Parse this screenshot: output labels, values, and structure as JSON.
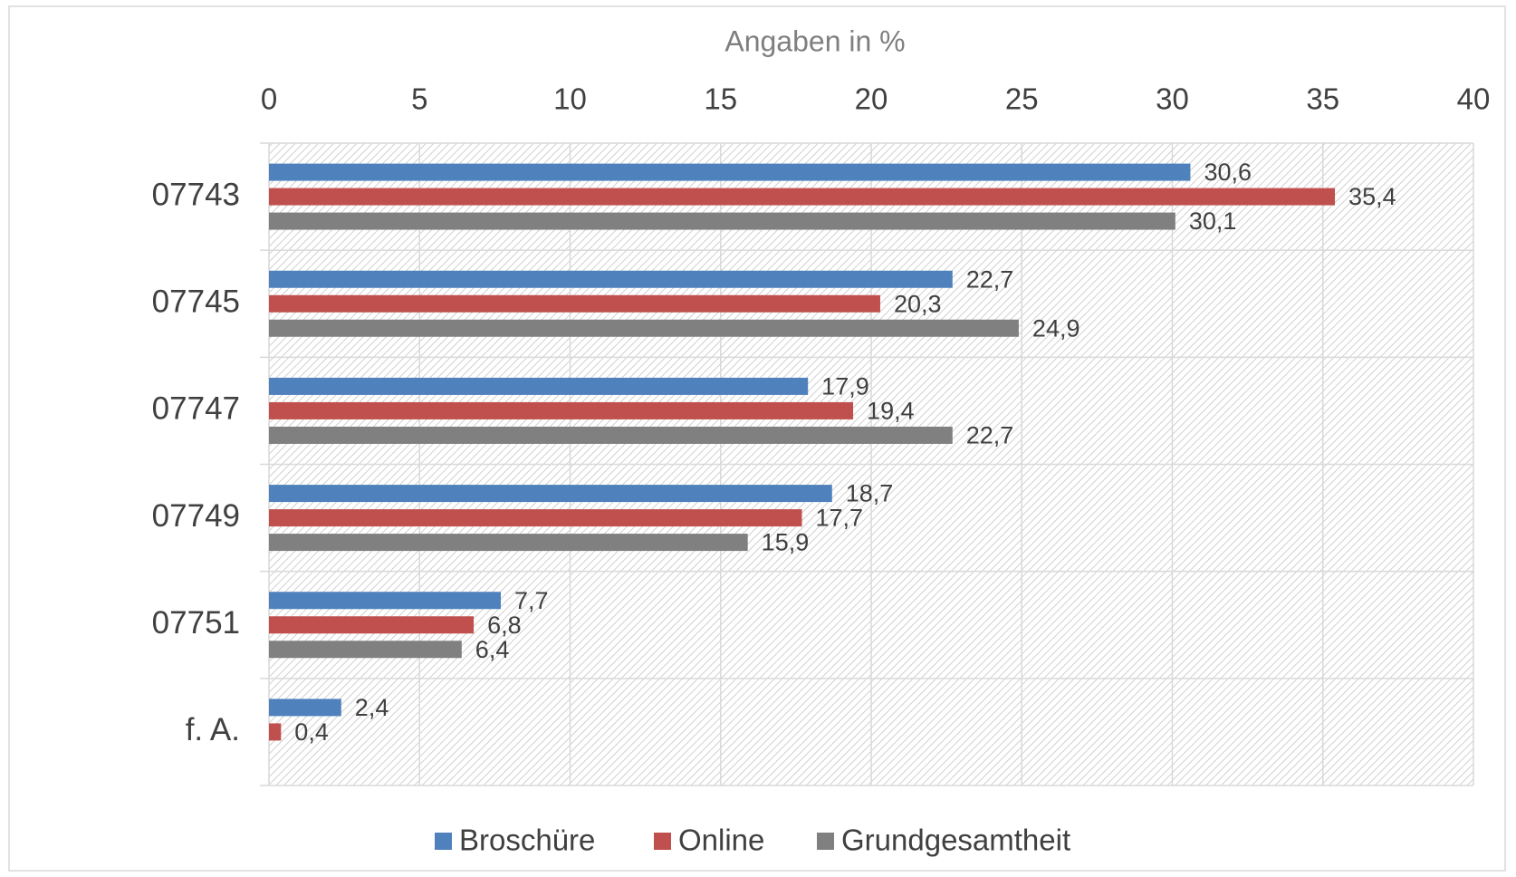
{
  "chart_data": {
    "type": "bar",
    "orientation": "horizontal",
    "xlabel": "Angaben in %",
    "categories": [
      "07743",
      "07745",
      "07747",
      "07749",
      "07751",
      "f. A."
    ],
    "series": [
      {
        "name": "Broschüre",
        "color": "#4f81bd",
        "values": [
          30.6,
          22.7,
          17.9,
          18.7,
          7.7,
          2.4
        ],
        "value_labels": [
          "30,6",
          "22,7",
          "17,9",
          "18,7",
          "7,7",
          "2,4"
        ]
      },
      {
        "name": "Online",
        "color": "#c0504d",
        "values": [
          35.4,
          20.3,
          19.4,
          17.7,
          6.8,
          0.4
        ],
        "value_labels": [
          "35,4",
          "20,3",
          "19,4",
          "17,7",
          "6,8",
          "0,4"
        ]
      },
      {
        "name": "Grundgesamtheit",
        "color": "#808080",
        "values": [
          30.1,
          24.9,
          22.7,
          15.9,
          6.4,
          null
        ],
        "value_labels": [
          "30,1",
          "24,9",
          "22,7",
          "15,9",
          "6,4",
          null
        ]
      }
    ],
    "xlim": [
      0,
      40
    ],
    "xticks": [
      0,
      5,
      10,
      15,
      20,
      25,
      30,
      35,
      40
    ],
    "grid": true,
    "legend": "bottom"
  }
}
